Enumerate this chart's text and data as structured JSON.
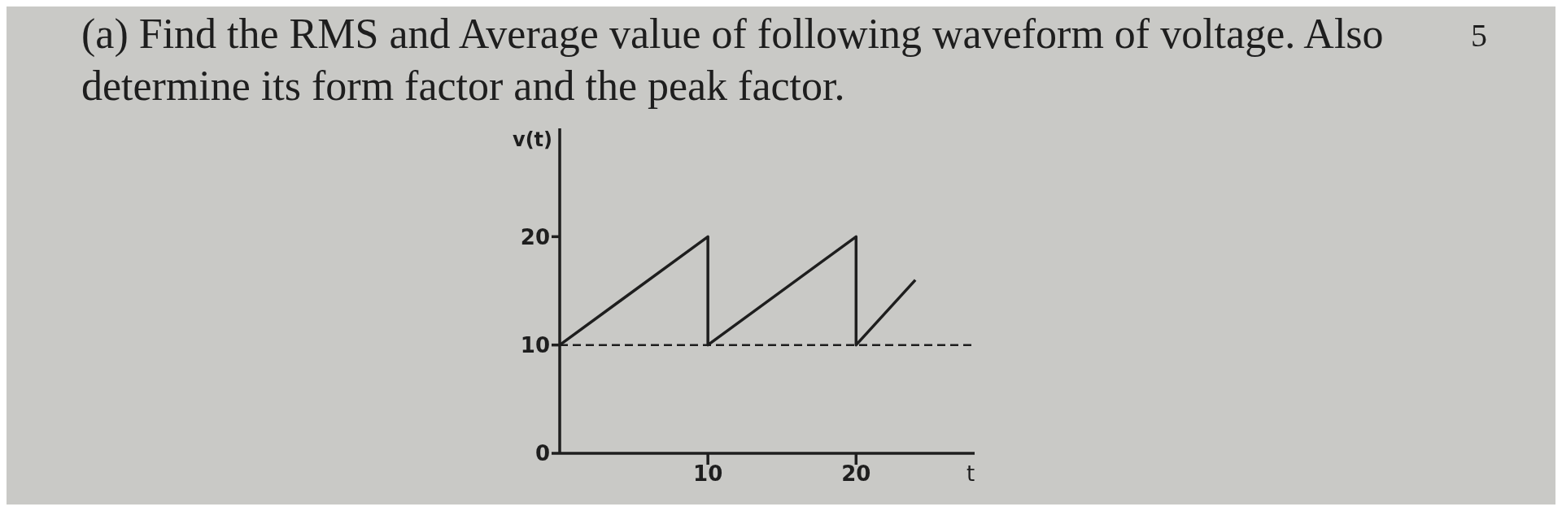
{
  "chart_data": {
    "type": "line",
    "title": "(a) Find the RMS and Average value of following waveform of voltage. Also determine its form factor and the peak factor.",
    "xlabel": "t",
    "ylabel": "v(t)",
    "annotations": [
      "5"
    ],
    "x": [
      0,
      10,
      10,
      20,
      20,
      24
    ],
    "series": [
      {
        "color": "#1e1e1e",
        "values": [
          10,
          20,
          10,
          20,
          10,
          16
        ]
      }
    ],
    "xlim": [
      0,
      28
    ],
    "ylim": [
      0,
      30
    ],
    "xticks": [
      10,
      20
    ],
    "yticks": [
      0,
      10,
      20
    ],
    "ref_lines": [
      {
        "axis": "y",
        "value": 10,
        "line_style": "dashed",
        "color": "#1e1e1e"
      }
    ],
    "grid": false,
    "marker": "none",
    "line_style": "solid"
  }
}
